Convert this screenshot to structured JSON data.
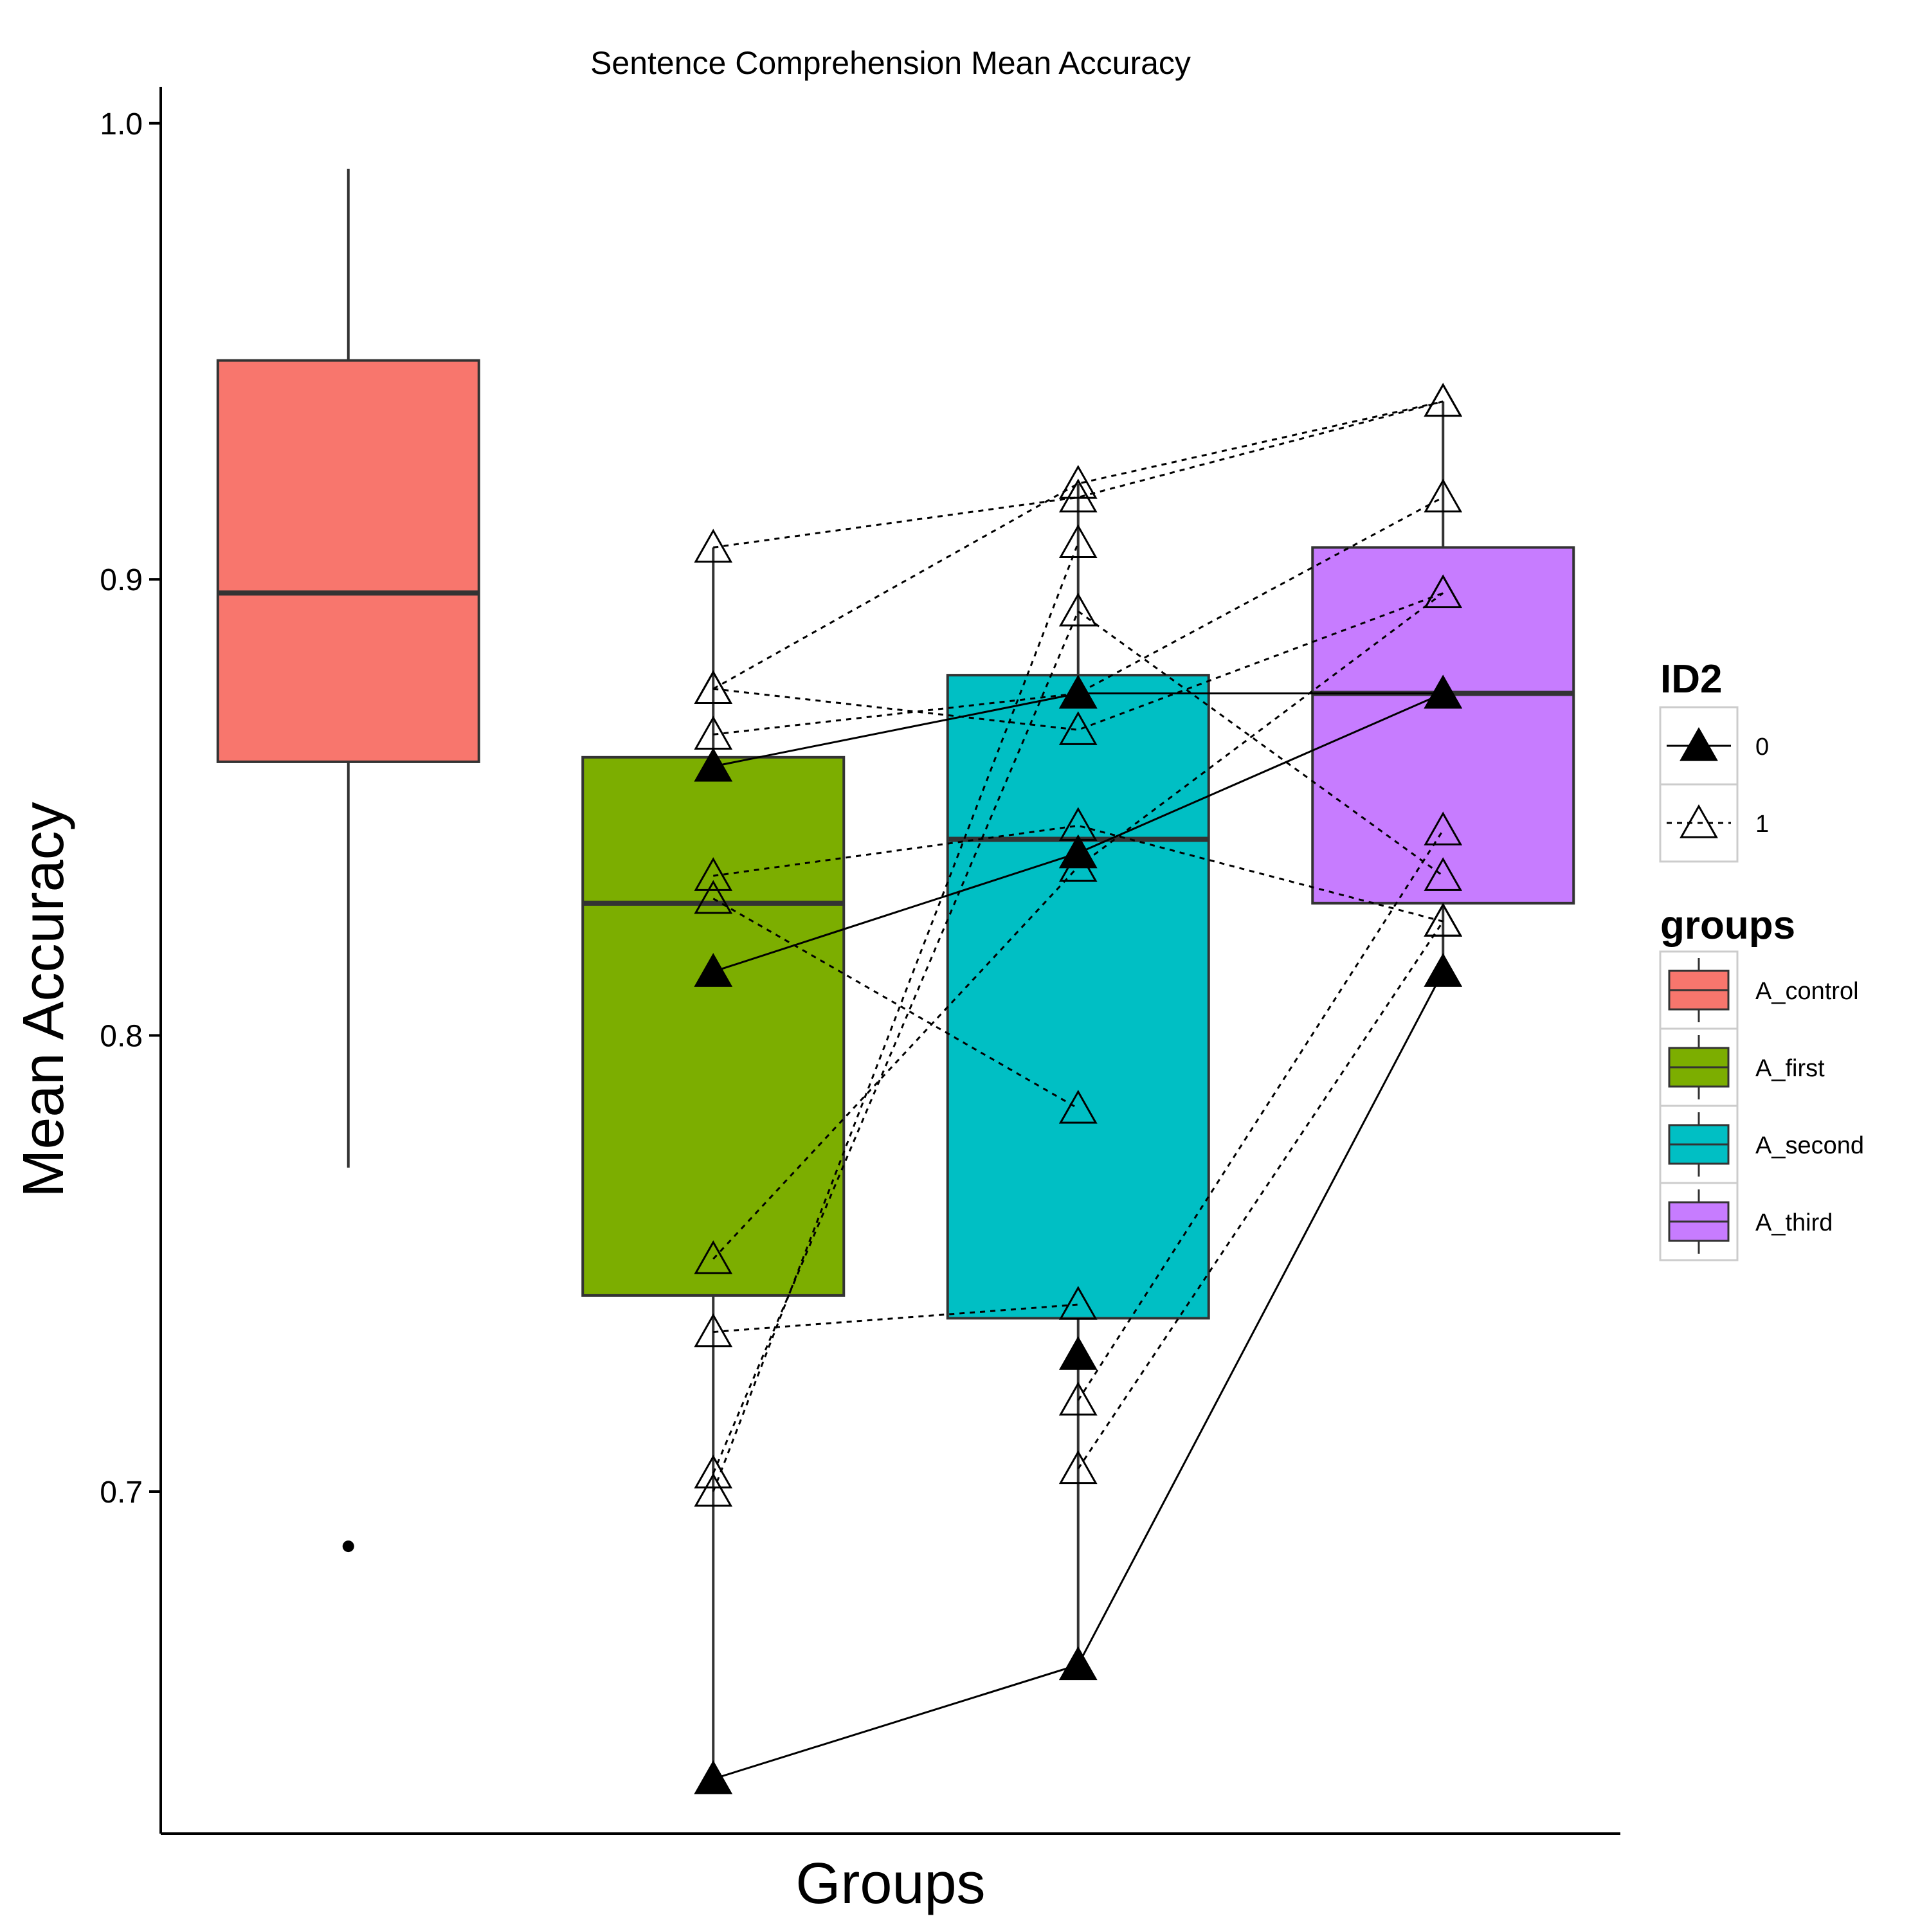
{
  "chart_data": {
    "type": "box",
    "title": "Sentence Comprehension Mean Accuracy",
    "xlabel": "Groups",
    "ylabel": "Mean Accuracy",
    "ylim": [
      0.625,
      1.008
    ],
    "yticks": [
      {
        "value": 0.7,
        "label": "0.7"
      },
      {
        "value": 0.8,
        "label": "0.8"
      },
      {
        "value": 0.9,
        "label": "0.9"
      },
      {
        "value": 1.0,
        "label": "1.0"
      }
    ],
    "categories": [
      "A_control",
      "A_first",
      "A_second",
      "A_third"
    ],
    "boxes": [
      {
        "group": "A_control",
        "color": "#F8766D",
        "whisker_low": 0.771,
        "q1": 0.86,
        "median": 0.897,
        "q3": 0.948,
        "whisker_high": 0.99,
        "outliers": [
          0.688
        ]
      },
      {
        "group": "A_first",
        "color": "#7CAE00",
        "whisker_low": 0.637,
        "q1": 0.743,
        "median": 0.829,
        "q3": 0.861,
        "whisker_high": 0.907,
        "outliers": []
      },
      {
        "group": "A_second",
        "color": "#00BFC4",
        "whisker_low": 0.662,
        "q1": 0.738,
        "median": 0.843,
        "q3": 0.879,
        "whisker_high": 0.921,
        "outliers": []
      },
      {
        "group": "A_third",
        "color": "#C77CFF",
        "whisker_low": 0.814,
        "q1": 0.829,
        "median": 0.875,
        "q3": 0.907,
        "whisker_high": 0.939,
        "outliers": []
      }
    ],
    "subjects_x": [
      "A_first",
      "A_second",
      "A_third"
    ],
    "subjects": [
      {
        "id2": "0",
        "values": [
          0.637,
          0.662,
          0.814
        ]
      },
      {
        "id2": "0",
        "values": [
          0.814,
          0.84,
          0.875
        ]
      },
      {
        "id2": "0",
        "values": [
          0.859,
          0.875,
          0.875
        ]
      },
      {
        "id2": "0",
        "values": [
          null,
          0.73,
          null
        ]
      },
      {
        "id2": "1",
        "values": [
          0.907,
          0.918,
          0.939
        ]
      },
      {
        "id2": "1",
        "values": [
          0.876,
          0.921,
          0.939
        ]
      },
      {
        "id2": "1",
        "values": [
          0.876,
          0.867,
          0.897
        ]
      },
      {
        "id2": "1",
        "values": [
          0.866,
          0.875,
          0.918
        ]
      },
      {
        "id2": "1",
        "values": [
          0.835,
          0.846,
          0.825
        ]
      },
      {
        "id2": "1",
        "values": [
          0.83,
          0.784,
          null
        ]
      },
      {
        "id2": "1",
        "values": [
          0.751,
          0.837,
          0.897
        ]
      },
      {
        "id2": "1",
        "values": [
          0.735,
          0.741,
          null
        ]
      },
      {
        "id2": "1",
        "values": [
          0.704,
          0.893,
          0.835
        ]
      },
      {
        "id2": "1",
        "values": [
          0.7,
          0.908,
          null
        ]
      },
      {
        "id2": "1",
        "values": [
          null,
          0.72,
          0.845
        ]
      },
      {
        "id2": "1",
        "values": [
          null,
          0.705,
          0.825
        ]
      }
    ],
    "legend": {
      "id2": {
        "title": "ID2",
        "items": [
          {
            "label": "0"
          },
          {
            "label": "1"
          }
        ]
      },
      "groups": {
        "title": "groups",
        "items": [
          {
            "label": "A_control",
            "color": "#F8766D"
          },
          {
            "label": "A_first",
            "color": "#7CAE00"
          },
          {
            "label": "A_second",
            "color": "#00BFC4"
          },
          {
            "label": "A_third",
            "color": "#C77CFF"
          }
        ]
      },
      "placement": "right"
    }
  }
}
